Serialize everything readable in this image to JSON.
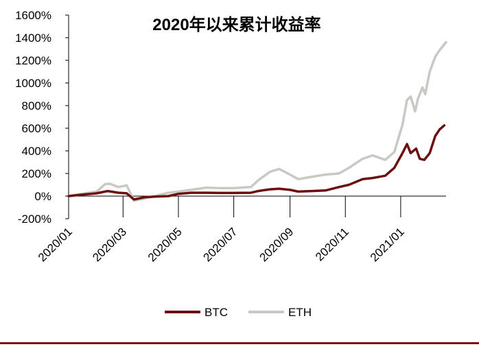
{
  "chart_data": {
    "type": "line",
    "title": "2020年以来累计收益率",
    "xlabel": "",
    "ylabel": "",
    "ylim": [
      -200,
      1600
    ],
    "yticks": [
      -200,
      0,
      200,
      400,
      600,
      800,
      1000,
      1200,
      1400,
      1600
    ],
    "ytick_labels": [
      "-200%",
      "0%",
      "200%",
      "400%",
      "600%",
      "800%",
      "1000%",
      "1200%",
      "1400%",
      "1600%"
    ],
    "x_range": [
      "2020-01-01",
      "2021-02-20"
    ],
    "xticks": [
      "2020-01-01",
      "2020-03-01",
      "2020-05-01",
      "2020-07-01",
      "2020-09-01",
      "2020-11-01",
      "2021-01-01"
    ],
    "xtick_labels": [
      "2020/01",
      "2020/03",
      "2020/05",
      "2020/07",
      "2020/09",
      "2020/11",
      "2021/01"
    ],
    "grid": false,
    "legend_position": "bottom",
    "series": [
      {
        "name": "BTC",
        "color": "#6b0f10",
        "points": [
          [
            "2020-01-01",
            0
          ],
          [
            "2020-01-15",
            12
          ],
          [
            "2020-02-01",
            25
          ],
          [
            "2020-02-13",
            45
          ],
          [
            "2020-02-25",
            30
          ],
          [
            "2020-03-05",
            25
          ],
          [
            "2020-03-13",
            -30
          ],
          [
            "2020-03-25",
            -10
          ],
          [
            "2020-04-05",
            -5
          ],
          [
            "2020-04-20",
            0
          ],
          [
            "2020-05-01",
            20
          ],
          [
            "2020-05-15",
            30
          ],
          [
            "2020-06-01",
            30
          ],
          [
            "2020-06-15",
            28
          ],
          [
            "2020-07-01",
            28
          ],
          [
            "2020-07-20",
            30
          ],
          [
            "2020-07-28",
            45
          ],
          [
            "2020-08-10",
            60
          ],
          [
            "2020-08-20",
            65
          ],
          [
            "2020-09-01",
            55
          ],
          [
            "2020-09-10",
            40
          ],
          [
            "2020-09-25",
            45
          ],
          [
            "2020-10-10",
            50
          ],
          [
            "2020-10-25",
            80
          ],
          [
            "2020-11-05",
            100
          ],
          [
            "2020-11-20",
            150
          ],
          [
            "2020-12-01",
            160
          ],
          [
            "2020-12-15",
            180
          ],
          [
            "2020-12-25",
            250
          ],
          [
            "2021-01-03",
            380
          ],
          [
            "2021-01-08",
            460
          ],
          [
            "2021-01-12",
            380
          ],
          [
            "2021-01-18",
            420
          ],
          [
            "2021-01-22",
            330
          ],
          [
            "2021-01-27",
            320
          ],
          [
            "2021-02-02",
            380
          ],
          [
            "2021-02-08",
            530
          ],
          [
            "2021-02-13",
            590
          ],
          [
            "2021-02-18",
            625
          ]
        ]
      },
      {
        "name": "ETH",
        "color": "#c9c8c2",
        "points": [
          [
            "2020-01-01",
            0
          ],
          [
            "2020-01-15",
            20
          ],
          [
            "2020-02-01",
            40
          ],
          [
            "2020-02-10",
            105
          ],
          [
            "2020-02-15",
            110
          ],
          [
            "2020-02-25",
            80
          ],
          [
            "2020-03-05",
            95
          ],
          [
            "2020-03-13",
            -40
          ],
          [
            "2020-03-25",
            -20
          ],
          [
            "2020-04-05",
            0
          ],
          [
            "2020-04-20",
            30
          ],
          [
            "2020-05-01",
            40
          ],
          [
            "2020-05-15",
            55
          ],
          [
            "2020-06-01",
            75
          ],
          [
            "2020-06-15",
            70
          ],
          [
            "2020-07-01",
            70
          ],
          [
            "2020-07-20",
            80
          ],
          [
            "2020-07-28",
            140
          ],
          [
            "2020-08-10",
            215
          ],
          [
            "2020-08-20",
            240
          ],
          [
            "2020-09-01",
            190
          ],
          [
            "2020-09-10",
            150
          ],
          [
            "2020-09-25",
            170
          ],
          [
            "2020-10-10",
            190
          ],
          [
            "2020-10-25",
            200
          ],
          [
            "2020-11-05",
            250
          ],
          [
            "2020-11-20",
            330
          ],
          [
            "2020-12-01",
            360
          ],
          [
            "2020-12-15",
            320
          ],
          [
            "2020-12-25",
            390
          ],
          [
            "2021-01-03",
            630
          ],
          [
            "2021-01-08",
            850
          ],
          [
            "2021-01-12",
            880
          ],
          [
            "2021-01-17",
            750
          ],
          [
            "2021-01-20",
            860
          ],
          [
            "2021-01-25",
            960
          ],
          [
            "2021-01-28",
            900
          ],
          [
            "2021-02-02",
            1100
          ],
          [
            "2021-02-08",
            1230
          ],
          [
            "2021-02-12",
            1280
          ],
          [
            "2021-02-16",
            1320
          ],
          [
            "2021-02-20",
            1360
          ]
        ]
      }
    ]
  },
  "legend": {
    "items": [
      {
        "label": "BTC",
        "color": "#6b0f10"
      },
      {
        "label": "ETH",
        "color": "#c9c8c2"
      }
    ]
  },
  "style": {
    "axis_color": "#000000",
    "footer_rule_color": "#7a1417"
  }
}
